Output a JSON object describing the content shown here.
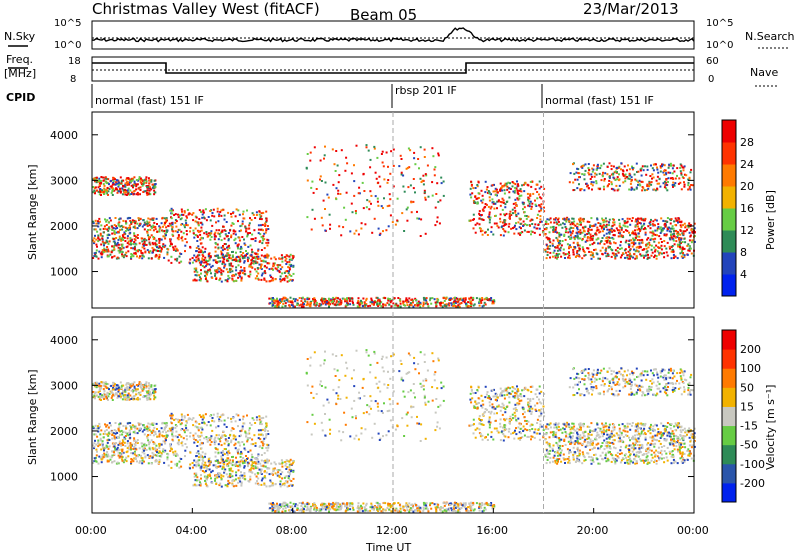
{
  "header": {
    "station": "Christmas Valley West (fitACF)",
    "beam": "Beam 05",
    "date": "23/Mar/2013"
  },
  "noise_panel": {
    "left_label": "N.Sky",
    "right_label": "N.Search",
    "ticks": [
      "10^5",
      "10^0"
    ]
  },
  "freq_panel": {
    "left_label_1": "Freq.",
    "left_label_2": "[MHz]",
    "left_ticks": [
      "18",
      "8"
    ],
    "right_label": "Nave",
    "right_ticks": [
      "60",
      "0"
    ]
  },
  "cpid_panel": {
    "label": "CPID",
    "segments": [
      {
        "text": "normal (fast) 151 IF",
        "start_hour": 0.0
      },
      {
        "text": "rbsp 201 IF",
        "start_hour": 12.0
      },
      {
        "text": "normal (fast) 151 IF",
        "start_hour": 18.0
      }
    ]
  },
  "chart_data": [
    {
      "type": "heatmap",
      "name": "power",
      "ylabel": "Slant Range [km]",
      "colorbar_label": "Power [dB]",
      "colorbar_ticks": [
        "4",
        "8",
        "12",
        "16",
        "20",
        "24",
        "28"
      ],
      "colorbar_colors": [
        "#0022ee",
        "#2244bb",
        "#2e8b57",
        "#66cc44",
        "#f2b200",
        "#ff7a00",
        "#ff3300",
        "#ee0000"
      ],
      "yticks": [
        1000,
        2000,
        3000,
        4000
      ],
      "ylim": [
        200,
        4500
      ],
      "xlim_hours": [
        0,
        24
      ]
    },
    {
      "type": "heatmap",
      "name": "velocity",
      "ylabel": "Slant Range [km]",
      "colorbar_label": "Velocity [m s⁻¹]",
      "colorbar_ticks": [
        "200",
        "100",
        "50",
        "15",
        "-15",
        "-50",
        "-100",
        "-200"
      ],
      "colorbar_colors": [
        "#0022ee",
        "#2a55aa",
        "#2e8b57",
        "#66cc44",
        "#c8c8c0",
        "#f2b200",
        "#ff7a00",
        "#ff3300",
        "#ee0000"
      ],
      "yticks": [
        1000,
        2000,
        3000,
        4000
      ],
      "ylim": [
        200,
        4500
      ],
      "xlim_hours": [
        0,
        24
      ]
    }
  ],
  "xaxis": {
    "label": "Time UT",
    "ticks": [
      "00:00",
      "04:00",
      "08:00",
      "12:00",
      "16:00",
      "20:00",
      "00:00"
    ]
  },
  "colors": {
    "noise_line": "#000000",
    "guide_line": "#aaaaaa"
  }
}
